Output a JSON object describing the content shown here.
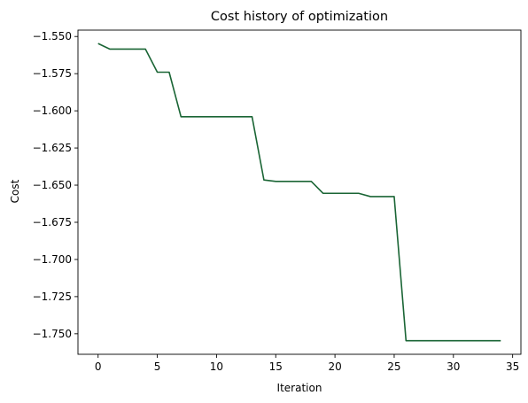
{
  "chart_data": {
    "type": "line",
    "title": "Cost history of optimization",
    "xlabel": "Iteration",
    "ylabel": "Cost",
    "xlim": [
      -1.7,
      35.7
    ],
    "ylim": [
      -1.7638,
      -1.5457
    ],
    "xticks": [
      0,
      5,
      10,
      15,
      20,
      25,
      30,
      35
    ],
    "xtick_labels": [
      "0",
      "5",
      "10",
      "15",
      "20",
      "25",
      "30",
      "35"
    ],
    "yticks": [
      -1.55,
      -1.575,
      -1.6,
      -1.625,
      -1.65,
      -1.675,
      -1.7,
      -1.725,
      -1.75
    ],
    "ytick_labels": [
      "−1.550",
      "−1.575",
      "−1.600",
      "−1.625",
      "−1.650",
      "−1.675",
      "−1.700",
      "−1.725",
      "−1.750"
    ],
    "grid": false,
    "series": [
      {
        "color": "#1a6535",
        "x": [
          0,
          1,
          2,
          3,
          4,
          5,
          6,
          7,
          8,
          9,
          10,
          11,
          12,
          13,
          14,
          15,
          16,
          17,
          18,
          19,
          20,
          21,
          22,
          23,
          24,
          25,
          26,
          27,
          28,
          29,
          30,
          31,
          32,
          33,
          34
        ],
        "y": [
          -1.5547,
          -1.5585,
          -1.5585,
          -1.5585,
          -1.5585,
          -1.574,
          -1.574,
          -1.604,
          -1.604,
          -1.604,
          -1.604,
          -1.604,
          -1.604,
          -1.604,
          -1.6465,
          -1.6475,
          -1.6475,
          -1.6475,
          -1.6475,
          -1.6555,
          -1.6555,
          -1.6555,
          -1.6555,
          -1.6577,
          -1.6577,
          -1.6577,
          -1.7547,
          -1.7547,
          -1.7547,
          -1.7547,
          -1.7547,
          -1.7547,
          -1.7547,
          -1.7547,
          -1.7547
        ]
      }
    ]
  }
}
